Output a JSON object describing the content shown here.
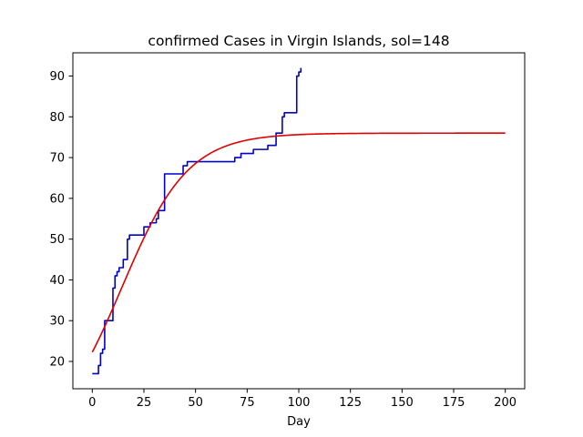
{
  "chart_data": {
    "type": "line",
    "title": "confirmed Cases in Virgin Islands, sol=148",
    "xlabel": "Day",
    "ylabel": "",
    "xlim": [
      -9.4,
      209.4
    ],
    "ylim": [
      13.3,
      95.7
    ],
    "xticks": [
      0,
      25,
      50,
      75,
      100,
      125,
      150,
      175,
      200
    ],
    "yticks": [
      20,
      30,
      40,
      50,
      60,
      70,
      80,
      90
    ],
    "grid": false,
    "legend": "none",
    "series": [
      {
        "color": "#0000cc",
        "style": "step",
        "x": [
          0,
          1,
          2,
          3,
          4,
          5,
          6,
          7,
          8,
          9,
          10,
          11,
          12,
          13,
          14,
          15,
          16,
          17,
          18,
          19,
          20,
          21,
          22,
          23,
          24,
          25,
          26,
          27,
          28,
          29,
          30,
          31,
          32,
          33,
          34,
          35,
          36,
          37,
          38,
          39,
          40,
          41,
          42,
          43,
          44,
          45,
          46,
          47,
          48,
          49,
          50,
          51,
          52,
          53,
          54,
          55,
          56,
          57,
          58,
          59,
          60,
          61,
          62,
          63,
          64,
          65,
          66,
          67,
          68,
          69,
          70,
          71,
          72,
          73,
          74,
          75,
          76,
          77,
          78,
          79,
          80,
          81,
          82,
          83,
          84,
          85,
          86,
          87,
          88,
          89,
          90,
          91,
          92,
          93,
          94,
          95,
          96,
          97,
          98,
          99,
          100,
          101
        ],
        "y": [
          17,
          17,
          17,
          19,
          22,
          23,
          30,
          30,
          30,
          30,
          38,
          41,
          42,
          43,
          43,
          45,
          45,
          50,
          51,
          51,
          51,
          51,
          51,
          51,
          51,
          53,
          53,
          53,
          54,
          54,
          54,
          55,
          57,
          57,
          57,
          66,
          66,
          66,
          66,
          66,
          66,
          66,
          66,
          66,
          68,
          68,
          69,
          69,
          69,
          69,
          69,
          69,
          69,
          69,
          69,
          69,
          69,
          69,
          69,
          69,
          69,
          69,
          69,
          69,
          69,
          69,
          69,
          69,
          69,
          70,
          70,
          70,
          71,
          71,
          71,
          71,
          71,
          71,
          72,
          72,
          72,
          72,
          72,
          72,
          72,
          73,
          73,
          73,
          73,
          76,
          76,
          76,
          80,
          81,
          81,
          81,
          81,
          81,
          81,
          90,
          91,
          92
        ]
      },
      {
        "color": "#dd0000",
        "style": "fit",
        "model": "logistic",
        "params": {
          "L": 76,
          "k": 0.062,
          "x0": 14.2
        },
        "x_range": [
          0,
          200
        ]
      }
    ]
  }
}
